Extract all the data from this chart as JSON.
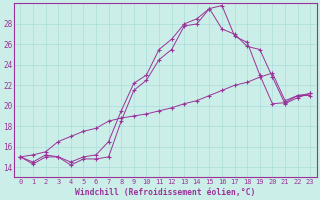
{
  "background_color": "#cceee8",
  "grid_color": "#aaddda",
  "line_color": "#993399",
  "marker": "+",
  "xlabel": "Windchill (Refroidissement éolien,°C)",
  "xlim_min": -0.5,
  "xlim_max": 23.5,
  "ylim_min": 13.0,
  "ylim_max": 30.0,
  "yticks": [
    14,
    16,
    18,
    20,
    22,
    24,
    26,
    28
  ],
  "xticks": [
    0,
    1,
    2,
    3,
    4,
    5,
    6,
    7,
    8,
    9,
    10,
    11,
    12,
    13,
    14,
    15,
    16,
    17,
    18,
    19,
    20,
    21,
    22,
    23
  ],
  "series1_x": [
    0,
    1,
    2,
    3,
    4,
    5,
    6,
    7,
    8,
    9,
    10,
    11,
    12,
    13,
    14,
    15,
    16,
    17,
    18,
    19,
    20,
    21,
    22,
    23
  ],
  "series1_y": [
    15.0,
    14.3,
    15.0,
    15.0,
    14.2,
    14.8,
    14.8,
    15.0,
    18.5,
    21.5,
    22.5,
    24.5,
    25.5,
    27.8,
    28.0,
    29.5,
    29.8,
    26.8,
    26.2,
    23.0,
    20.2,
    20.3,
    21.0,
    21.0
  ],
  "series2_x": [
    0,
    1,
    2,
    3,
    4,
    5,
    6,
    7,
    8,
    9,
    10,
    11,
    12,
    13,
    14,
    15,
    16,
    17,
    18,
    19,
    20,
    21,
    22,
    23
  ],
  "series2_y": [
    15.0,
    15.2,
    15.5,
    16.5,
    17.0,
    17.5,
    17.8,
    18.5,
    18.8,
    19.0,
    19.2,
    19.5,
    19.8,
    20.2,
    20.5,
    21.0,
    21.5,
    22.0,
    22.3,
    22.8,
    23.2,
    20.5,
    21.0,
    21.2
  ],
  "series3_x": [
    0,
    1,
    2,
    3,
    4,
    5,
    6,
    7,
    8,
    9,
    10,
    11,
    12,
    13,
    14,
    15,
    16,
    17,
    18,
    19,
    20,
    21,
    22,
    23
  ],
  "series3_y": [
    15.0,
    14.5,
    15.2,
    15.0,
    14.5,
    15.0,
    15.2,
    16.5,
    19.5,
    22.2,
    23.0,
    25.5,
    26.5,
    28.0,
    28.5,
    29.5,
    27.5,
    27.0,
    25.8,
    25.5,
    22.8,
    20.2,
    20.8,
    21.2
  ]
}
